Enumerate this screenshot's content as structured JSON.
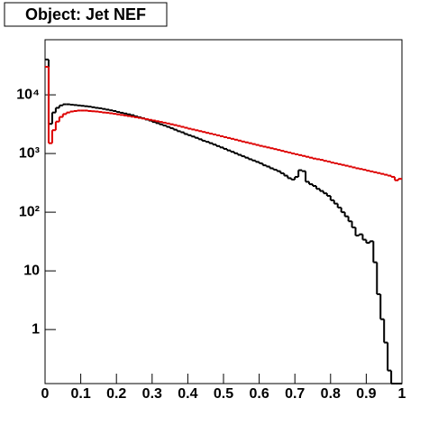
{
  "chart_data": {
    "type": "histogram",
    "title": "Object: Jet NEF",
    "bins": [
      0,
      0.01,
      0.02,
      0.03,
      0.04,
      0.05,
      0.06,
      0.07,
      0.08,
      0.09,
      0.1,
      0.11,
      0.12,
      0.13,
      0.14,
      0.15,
      0.16,
      0.17,
      0.18,
      0.19,
      0.2,
      0.21,
      0.22,
      0.23,
      0.24,
      0.25,
      0.26,
      0.27,
      0.28,
      0.29,
      0.3,
      0.31,
      0.32,
      0.33,
      0.34,
      0.35,
      0.36,
      0.37,
      0.38,
      0.39,
      0.4,
      0.41,
      0.42,
      0.43,
      0.44,
      0.45,
      0.46,
      0.47,
      0.48,
      0.49,
      0.5,
      0.51,
      0.52,
      0.53,
      0.54,
      0.55,
      0.56,
      0.57,
      0.58,
      0.59,
      0.6,
      0.61,
      0.62,
      0.63,
      0.64,
      0.65,
      0.66,
      0.67,
      0.68,
      0.69,
      0.7,
      0.71,
      0.72,
      0.73,
      0.74,
      0.75,
      0.76,
      0.77,
      0.78,
      0.79,
      0.8,
      0.81,
      0.82,
      0.83,
      0.84,
      0.85,
      0.86,
      0.87,
      0.88,
      0.89,
      0.9,
      0.91,
      0.92,
      0.93,
      0.94,
      0.95,
      0.96,
      0.97,
      0.98,
      0.99,
      1
    ],
    "series": [
      {
        "color": "#000000",
        "values": [
          40000,
          3200,
          5000,
          6000,
          6600,
          6900,
          6900,
          6800,
          6700,
          6600,
          6500,
          6400,
          6300,
          6150,
          6000,
          5900,
          5750,
          5600,
          5450,
          5300,
          5100,
          4950,
          4800,
          4650,
          4500,
          4300,
          4150,
          4000,
          3800,
          3650,
          3450,
          3300,
          3150,
          3000,
          2850,
          2700,
          2550,
          2400,
          2300,
          2150,
          2050,
          1950,
          1850,
          1750,
          1650,
          1580,
          1500,
          1420,
          1340,
          1270,
          1200,
          1130,
          1070,
          1010,
          950,
          900,
          850,
          800,
          760,
          720,
          680,
          630,
          600,
          560,
          530,
          500,
          460,
          420,
          380,
          360,
          400,
          520,
          500,
          330,
          300,
          280,
          250,
          230,
          210,
          190,
          160,
          140,
          120,
          100,
          85,
          70,
          55,
          40,
          42,
          34,
          30,
          32,
          14,
          4,
          1.5,
          0.6,
          0.2,
          0,
          0,
          0
        ]
      },
      {
        "color": "#dd0000",
        "values": [
          30000,
          1500,
          2500,
          3500,
          4200,
          4700,
          5000,
          5200,
          5300,
          5400,
          5400,
          5400,
          5300,
          5250,
          5200,
          5100,
          5000,
          4950,
          4850,
          4750,
          4650,
          4550,
          4450,
          4350,
          4250,
          4150,
          4050,
          3950,
          3850,
          3750,
          3650,
          3550,
          3450,
          3350,
          3250,
          3150,
          3050,
          2950,
          2850,
          2750,
          2650,
          2570,
          2490,
          2410,
          2330,
          2250,
          2180,
          2110,
          2040,
          1970,
          1900,
          1840,
          1780,
          1720,
          1660,
          1600,
          1550,
          1500,
          1450,
          1400,
          1350,
          1310,
          1270,
          1230,
          1190,
          1150,
          1110,
          1070,
          1040,
          1000,
          970,
          940,
          910,
          880,
          850,
          820,
          800,
          780,
          750,
          730,
          700,
          680,
          660,
          640,
          620,
          600,
          580,
          560,
          545,
          530,
          510,
          495,
          480,
          465,
          450,
          435,
          420,
          400,
          350,
          370
        ]
      }
    ],
    "xlim": [
      0,
      1
    ],
    "xticks": [
      0,
      0.1,
      0.2,
      0.3,
      0.4,
      0.5,
      0.6,
      0.7,
      0.8,
      0.9,
      1
    ],
    "ylim": [
      0.12,
      87000
    ],
    "yscale": "log",
    "yticks": [
      1,
      10,
      {
        "value": 100,
        "label": "10²"
      },
      {
        "value": 1000,
        "label": "10³"
      },
      {
        "value": 10000,
        "label": "10⁴"
      }
    ]
  }
}
